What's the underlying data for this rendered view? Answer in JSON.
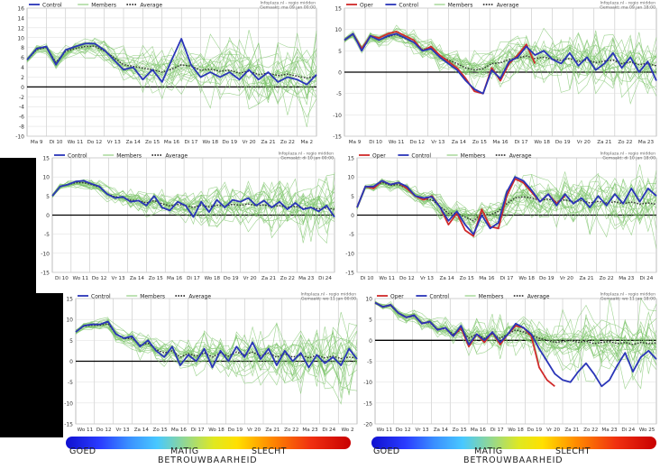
{
  "chart_data": [
    {
      "type": "line",
      "panel": "p1",
      "legend": [
        "Control",
        "Members",
        "Average"
      ],
      "source": "Infoplaza.nl - regio midden",
      "created": "Gemaakt: ma 09 jan 00:00",
      "yticks": [
        -10,
        -8,
        -6,
        -4,
        -2,
        0,
        2,
        4,
        6,
        8,
        10,
        12,
        14,
        16
      ],
      "ylim": [
        -10,
        16
      ],
      "xticks": [
        "Ma 9",
        "Di 10",
        "Wo 11",
        "Do 12",
        "Vr 13",
        "Za 14",
        "Zo 15",
        "Ma 16",
        "Di 17",
        "Wo 18",
        "Do 19",
        "Vr 20",
        "Za 21",
        "Zo 22",
        "Ma 2"
      ],
      "series": [
        {
          "name": "Control",
          "values": [
            5.5,
            7.8,
            8.2,
            4.5,
            7.5,
            8.2,
            8.8,
            8.8,
            7.5,
            5.5,
            3.5,
            4.0,
            1.5,
            3.5,
            1.0,
            5.5,
            9.8,
            4.5,
            2.0,
            3.0,
            2.0,
            3.0,
            1.5,
            3.5,
            1.5,
            3.0,
            1.0,
            2.0,
            1.5,
            0.5,
            2.5
          ]
        },
        {
          "name": "Average",
          "values": [
            5.5,
            7.6,
            8.0,
            5.0,
            7.2,
            7.8,
            8.2,
            8.3,
            7.3,
            6.0,
            4.5,
            4.2,
            3.8,
            3.5,
            3.0,
            3.6,
            4.5,
            4.2,
            3.4,
            3.6,
            3.2,
            3.4,
            2.8,
            3.2,
            2.5,
            2.8,
            2.3,
            2.6,
            2.2,
            1.8,
            2.2
          ]
        }
      ]
    },
    {
      "type": "line",
      "panel": "p2",
      "legend": [
        "Oper",
        "Control",
        "Members",
        "Average"
      ],
      "source": "Infoplaza.nl - regio midden",
      "created": "Gemaakt: ma 09 jan 18:00",
      "yticks": [
        -15,
        -10,
        -5,
        0,
        5,
        10,
        15
      ],
      "ylim": [
        -15,
        15
      ],
      "xticks": [
        "Ma 9",
        "Di 10",
        "Wo 11",
        "Do 12",
        "Vr 13",
        "Za 14",
        "Zo 15",
        "Ma 16",
        "Di 17",
        "Wo 18",
        "Do 19",
        "Vr 20",
        "Za 21",
        "Zo 22",
        "Ma 23"
      ],
      "series": [
        {
          "name": "Oper",
          "values": [
            7.5,
            9.0,
            5.5,
            8.5,
            8.0,
            9.0,
            9.5,
            8.5,
            7.5,
            5.0,
            6.0,
            4.0,
            2.5,
            1.0,
            -1.5,
            -4.5,
            -5.0,
            1.0,
            -2.0,
            2.0,
            4.0,
            6.5,
            2.0
          ]
        },
        {
          "name": "Control",
          "values": [
            7.5,
            9.0,
            5.0,
            8.5,
            7.5,
            8.5,
            9.0,
            8.0,
            7.0,
            5.0,
            5.5,
            3.5,
            2.0,
            0.5,
            -2.0,
            -4.0,
            -5.0,
            0.5,
            -1.5,
            2.5,
            3.5,
            6.0,
            4.0,
            5.0,
            3.0,
            2.0,
            4.5,
            1.5,
            3.5,
            0.5,
            2.0,
            4.5,
            1.0,
            3.5,
            0.0,
            2.5,
            -2.0
          ]
        },
        {
          "name": "Average",
          "values": [
            7.5,
            8.8,
            5.5,
            8.3,
            7.6,
            8.3,
            8.8,
            7.9,
            7.0,
            5.3,
            5.5,
            3.8,
            2.8,
            2.0,
            1.0,
            0.5,
            0.8,
            2.0,
            2.2,
            3.0,
            3.3,
            3.8,
            3.2,
            3.5,
            3.0,
            2.8,
            3.2,
            2.5,
            2.9,
            2.2,
            2.6,
            2.8,
            2.0,
            2.4,
            1.8,
            2.0,
            1.5
          ]
        }
      ]
    },
    {
      "type": "line",
      "panel": "p3",
      "legend": [
        "Control",
        "Members",
        "Average"
      ],
      "source": "Infoplaza.nl - regio midden",
      "created": "Gemaakt: di 10 jan 00:00",
      "yticks": [
        -15,
        -10,
        -5,
        0,
        5,
        10,
        15
      ],
      "ylim": [
        -15,
        15
      ],
      "xticks": [
        "Di 10",
        "Wo 11",
        "Do 12",
        "Vr 13",
        "Za 14",
        "Zo 15",
        "Ma 16",
        "Di 17",
        "Wo 18",
        "Do 19",
        "Vr 20",
        "Za 21",
        "Zo 22",
        "Ma 23",
        "Di 24"
      ],
      "series": [
        {
          "name": "Control",
          "values": [
            5.0,
            7.5,
            8.0,
            8.8,
            9.0,
            8.2,
            7.5,
            5.5,
            4.5,
            4.8,
            3.5,
            3.8,
            2.5,
            5.0,
            2.0,
            1.2,
            3.5,
            2.5,
            -0.5,
            3.5,
            0.8,
            4.0,
            2.0,
            4.0,
            3.5,
            4.5,
            2.5,
            3.8,
            2.0,
            3.5,
            1.5,
            3.2,
            1.5,
            2.0,
            1.0,
            2.5,
            -0.5
          ]
        },
        {
          "name": "Average",
          "values": [
            5.0,
            7.5,
            8.0,
            8.5,
            8.5,
            8.0,
            7.3,
            5.6,
            4.8,
            4.6,
            3.9,
            3.8,
            3.2,
            3.8,
            3.0,
            2.4,
            2.8,
            2.5,
            2.0,
            2.6,
            2.2,
            2.6,
            2.4,
            2.8,
            2.6,
            2.9,
            2.5,
            2.7,
            2.2,
            2.5,
            2.0,
            2.3,
            1.8,
            2.0,
            1.6,
            1.9,
            1.5
          ]
        }
      ]
    },
    {
      "type": "line",
      "panel": "p4",
      "legend": [
        "Oper",
        "Control",
        "Members",
        "Average"
      ],
      "source": "Infoplaza.nl - regio midden",
      "created": "Gemaakt: di 10 jan 18:00",
      "yticks": [
        -15,
        -10,
        -5,
        0,
        5,
        10,
        15
      ],
      "ylim": [
        -15,
        15
      ],
      "xticks": [
        "Di 10",
        "Wo 11",
        "Do 12",
        "Vr 13",
        "Za 14",
        "Zo 15",
        "Ma 16",
        "Di 17",
        "Wo 18",
        "Do 19",
        "Vr 20",
        "Za 21",
        "Zo 22",
        "Ma 23",
        "Di 24"
      ],
      "series": [
        {
          "name": "Oper",
          "values": [
            2.0,
            7.5,
            7.0,
            9.0,
            8.0,
            8.5,
            7.0,
            5.0,
            4.0,
            5.0,
            2.0,
            -2.5,
            0.5,
            -4.0,
            -5.5,
            1.5,
            -3.0,
            -3.5,
            5.0,
            9.5,
            8.5,
            6.0,
            3.5,
            5.5,
            3.0,
            5.0
          ]
        },
        {
          "name": "Control",
          "values": [
            2.0,
            7.5,
            7.5,
            9.0,
            8.0,
            8.5,
            7.5,
            5.0,
            4.5,
            4.8,
            2.0,
            -1.5,
            1.0,
            -2.5,
            -5.0,
            0.0,
            -3.5,
            -2.0,
            6.0,
            10.0,
            9.0,
            6.5,
            3.5,
            5.5,
            2.5,
            5.5,
            3.0,
            4.5,
            2.0,
            5.0,
            2.5,
            5.5,
            3.0,
            7.0,
            3.5,
            7.0,
            5.0
          ]
        },
        {
          "name": "Average",
          "values": [
            2.0,
            7.3,
            7.3,
            8.6,
            7.8,
            8.0,
            7.0,
            5.0,
            4.2,
            4.0,
            2.2,
            0.5,
            0.5,
            -0.5,
            -1.5,
            0.5,
            0.0,
            1.0,
            3.0,
            4.5,
            4.8,
            4.5,
            3.8,
            4.2,
            3.5,
            4.0,
            3.5,
            3.8,
            3.2,
            3.6,
            3.2,
            3.5,
            3.0,
            3.4,
            2.9,
            3.2,
            2.8
          ]
        }
      ]
    },
    {
      "type": "line",
      "panel": "p5",
      "legend": [
        "Control",
        "Members",
        "Average"
      ],
      "source": "Infoplaza.nl - regio midden",
      "created": "Gemaakt: wo 11 jan 00:00",
      "yticks": [
        -15,
        -10,
        -5,
        0,
        5,
        10,
        15
      ],
      "ylim": [
        -15,
        15
      ],
      "xticks": [
        "Wo 11",
        "Do 12",
        "Vr 13",
        "Za 14",
        "Zo 15",
        "Ma 16",
        "Di 17",
        "Wo 18",
        "Do 19",
        "Vr 20",
        "Za 21",
        "Zo 22",
        "Ma 23",
        "Di 24",
        "Wo 2"
      ],
      "series": [
        {
          "name": "Control",
          "values": [
            7.0,
            8.5,
            8.8,
            8.8,
            9.5,
            6.5,
            5.5,
            6.0,
            3.5,
            5.0,
            2.5,
            1.0,
            3.5,
            -1.0,
            1.5,
            0.0,
            3.0,
            -1.5,
            2.5,
            0.0,
            3.5,
            1.0,
            4.5,
            0.5,
            3.0,
            -1.0,
            2.5,
            0.0,
            2.0,
            -1.5,
            1.5,
            -0.5,
            1.0,
            -1.0,
            3.0,
            0.5
          ]
        },
        {
          "name": "Average",
          "values": [
            7.0,
            8.4,
            8.6,
            8.6,
            9.0,
            6.5,
            5.4,
            5.5,
            3.8,
            4.3,
            2.8,
            2.0,
            2.5,
            1.0,
            1.8,
            1.2,
            2.0,
            1.0,
            2.0,
            1.2,
            2.2,
            1.5,
            2.2,
            1.2,
            2.0,
            1.0,
            1.8,
            1.0,
            1.5,
            0.8,
            1.4,
            0.8,
            1.2,
            0.6,
            1.0,
            0.8
          ]
        }
      ]
    },
    {
      "type": "line",
      "panel": "p6",
      "legend": [
        "Oper",
        "Control",
        "Members",
        "Average"
      ],
      "source": "Infoplaza.nl - regio midden",
      "created": "Gemaakt: wo 11 jan 18:00",
      "yticks": [
        -20,
        -15,
        -10,
        -5,
        0,
        5,
        10
      ],
      "ylim": [
        -20,
        10
      ],
      "xticks": [
        "Wo 11",
        "Do 12",
        "Vr 13",
        "Za 14",
        "Zo 15",
        "Ma 16",
        "Di 17",
        "Wo 18",
        "Do 19",
        "Vr 20",
        "Za 21",
        "Zo 22",
        "Ma 23",
        "Di 24",
        "Wo 25"
      ],
      "series": [
        {
          "name": "Oper",
          "values": [
            9.0,
            8.0,
            8.5,
            6.5,
            5.5,
            6.0,
            4.0,
            4.5,
            2.5,
            3.0,
            1.0,
            3.0,
            -1.5,
            1.5,
            -0.5,
            2.0,
            -1.0,
            1.5,
            3.5,
            3.0,
            1.0,
            -6.5,
            -9.5,
            -11.0
          ]
        },
        {
          "name": "Control",
          "values": [
            9.0,
            8.0,
            8.5,
            6.5,
            5.5,
            6.0,
            4.0,
            4.5,
            2.5,
            3.0,
            1.0,
            3.5,
            -1.0,
            1.5,
            0.0,
            2.0,
            -0.5,
            1.5,
            4.0,
            3.0,
            1.5,
            -2.0,
            -5.0,
            -8.0,
            -9.5,
            -10.0,
            -7.5,
            -5.5,
            -8.0,
            -11.0,
            -9.5,
            -6.0,
            -3.0,
            -7.5,
            -4.0,
            -2.5,
            -4.5
          ]
        },
        {
          "name": "Average",
          "values": [
            9.0,
            8.0,
            8.3,
            6.5,
            5.5,
            5.8,
            4.2,
            4.2,
            2.7,
            2.8,
            1.5,
            2.5,
            0.5,
            1.5,
            0.5,
            1.5,
            0.5,
            1.5,
            2.5,
            2.0,
            1.2,
            0.5,
            0.0,
            -0.5,
            -0.3,
            0.0,
            -0.5,
            -0.2,
            -0.8,
            -0.5,
            -0.3,
            -0.8,
            -0.5,
            -1.0,
            -0.5,
            -0.8,
            -0.6
          ]
        }
      ]
    }
  ],
  "scales": [
    {
      "goed": "GOED",
      "matig": "MATIG",
      "slecht": "SLECHT",
      "title": "BETROUWBAARHEID"
    },
    {
      "goed": "GOED",
      "matig": "MATIG",
      "slecht": "SLECHT",
      "title": "BETROUWBAARHEID"
    }
  ]
}
